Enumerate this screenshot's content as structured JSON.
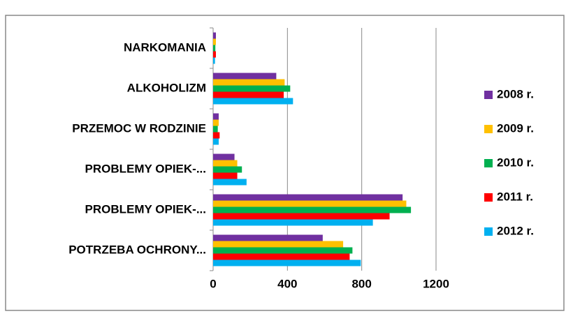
{
  "chart_data": {
    "type": "bar",
    "orientation": "horizontal",
    "categories": [
      "NARKOMANIA",
      "ALKOHOLIZM",
      "PRZEMOC W RODZINIE",
      "PROBLEMY OPIEK-...",
      "PROBLEMY OPIEK-...",
      "POTRZEBA OCHRONY..."
    ],
    "series": [
      {
        "name": "2008 r.",
        "color": "#7030a0",
        "values": [
          15,
          340,
          30,
          115,
          1020,
          590
        ]
      },
      {
        "name": "2009 r.",
        "color": "#ffc000",
        "values": [
          15,
          385,
          30,
          130,
          1040,
          700
        ]
      },
      {
        "name": "2010 r.",
        "color": "#00b050",
        "values": [
          12,
          415,
          25,
          155,
          1065,
          750
        ]
      },
      {
        "name": "2011 r.",
        "color": "#ff0000",
        "values": [
          15,
          380,
          35,
          130,
          950,
          735
        ]
      },
      {
        "name": "2012 r.",
        "color": "#00b0f0",
        "values": [
          10,
          430,
          30,
          180,
          860,
          795
        ]
      }
    ],
    "xlim": [
      0,
      1200
    ],
    "xticks": [
      0,
      400,
      800,
      1200
    ],
    "grid": true,
    "legend": "right"
  }
}
